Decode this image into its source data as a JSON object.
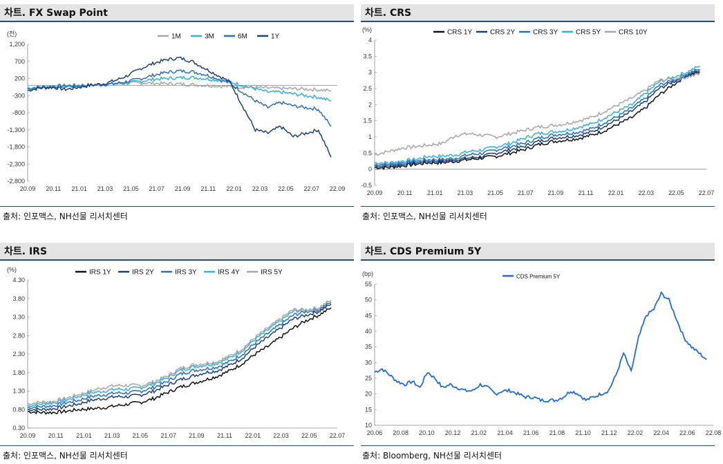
{
  "colors": {
    "gray": "#a6a6a6",
    "light": "#2fb0e3",
    "mid": "#2a6fb7",
    "dark": "#1b3f7a",
    "black": "#111111",
    "cds": "#1f6bd6"
  },
  "panels": [
    {
      "title": "차트. FX Swap Point",
      "source": "출처: 인포맥스, NH선물 리서치센터"
    },
    {
      "title": "차트. CRS",
      "source": "출처: 인포맥스, NH선물 리서치센터"
    },
    {
      "title": "차트. IRS",
      "source": "출처: 인포맥스, NH선물 리서치센터"
    },
    {
      "title": "차트. CDS Premium 5Y",
      "source": "출처: Bloomberg, NH선물 리서치센터"
    }
  ],
  "chart_data": [
    {
      "type": "line",
      "title": "차트. FX Swap Point",
      "unit": "(전)",
      "ylim": [
        -2800,
        1200
      ],
      "yticks": [
        "1,200",
        "700",
        "200",
        "-300",
        "-800",
        "-1,300",
        "-1,800",
        "-2,300",
        "-2,800"
      ],
      "xticks": [
        "20.09",
        "20.11",
        "21.01",
        "21.03",
        "21.05",
        "21.07",
        "21.09",
        "21.11",
        "22.01",
        "22.03",
        "22.05",
        "22.07",
        "22.09"
      ],
      "legend": "top",
      "series": [
        {
          "name": "1M",
          "color": "gray",
          "y": [
            -80,
            -40,
            -20,
            0,
            10,
            20,
            30,
            40,
            60,
            70,
            60,
            50,
            40,
            20,
            0,
            -20,
            -40,
            -50,
            -60,
            -80,
            -90,
            -100,
            -110,
            -130,
            -160
          ]
        },
        {
          "name": "3M",
          "color": "light",
          "y": [
            -80,
            -40,
            -20,
            -10,
            0,
            10,
            20,
            40,
            80,
            120,
            180,
            200,
            220,
            230,
            200,
            150,
            100,
            0,
            -100,
            -200,
            -200,
            -250,
            -300,
            -350,
            -450
          ]
        },
        {
          "name": "6M",
          "color": "mid",
          "y": [
            -100,
            -60,
            -40,
            -30,
            -20,
            0,
            20,
            60,
            120,
            200,
            300,
            380,
            420,
            400,
            320,
            200,
            60,
            -200,
            -450,
            -650,
            -500,
            -600,
            -650,
            -700,
            -1200
          ]
        },
        {
          "name": "1Y",
          "color": "dark",
          "y": [
            -150,
            -80,
            -60,
            -120,
            -60,
            0,
            50,
            150,
            300,
            500,
            650,
            750,
            800,
            700,
            500,
            300,
            100,
            -600,
            -1300,
            -1400,
            -1200,
            -1500,
            -1400,
            -1300,
            -2100
          ]
        }
      ]
    },
    {
      "type": "line",
      "title": "차트. CRS",
      "unit": "(%)",
      "ylim": [
        -0.5,
        4
      ],
      "yticks": [
        "4",
        "3.5",
        "3",
        "2.5",
        "2",
        "1.5",
        "1",
        "0.5",
        "0",
        "-0.5"
      ],
      "xticks": [
        "20.09",
        "20.11",
        "21.01",
        "21.03",
        "21.05",
        "21.07",
        "21.09",
        "21.11",
        "22.01",
        "22.03",
        "22.05",
        "22.07"
      ],
      "legend": "top",
      "series": [
        {
          "name": "CRS 1Y",
          "color": "black",
          "y": [
            0.05,
            0.05,
            0.1,
            0.15,
            0.2,
            0.2,
            0.25,
            0.3,
            0.35,
            0.4,
            0.5,
            0.6,
            0.75,
            0.85,
            0.9,
            0.95,
            1.05,
            1.2,
            1.4,
            1.6,
            1.9,
            2.3,
            2.6,
            2.9,
            3.0
          ]
        },
        {
          "name": "CRS 2Y",
          "color": "dark",
          "y": [
            0.1,
            0.1,
            0.15,
            0.2,
            0.25,
            0.25,
            0.3,
            0.35,
            0.4,
            0.5,
            0.6,
            0.7,
            0.85,
            0.95,
            1.0,
            1.05,
            1.15,
            1.35,
            1.55,
            1.8,
            2.1,
            2.5,
            2.7,
            2.9,
            3.05
          ]
        },
        {
          "name": "CRS 3Y",
          "color": "mid",
          "y": [
            0.15,
            0.15,
            0.2,
            0.25,
            0.3,
            0.3,
            0.35,
            0.45,
            0.5,
            0.6,
            0.7,
            0.8,
            0.95,
            1.05,
            1.1,
            1.15,
            1.25,
            1.45,
            1.65,
            1.9,
            2.2,
            2.6,
            2.75,
            2.95,
            3.1
          ]
        },
        {
          "name": "CRS 5Y",
          "color": "light",
          "y": [
            0.2,
            0.2,
            0.25,
            0.3,
            0.4,
            0.4,
            0.45,
            0.55,
            0.6,
            0.7,
            0.8,
            0.95,
            1.1,
            1.15,
            1.2,
            1.3,
            1.4,
            1.6,
            1.8,
            2.0,
            2.35,
            2.7,
            2.85,
            3.0,
            3.2
          ]
        },
        {
          "name": "CRS 10Y",
          "color": "gray",
          "y": [
            0.45,
            0.55,
            0.65,
            0.7,
            0.75,
            0.8,
            1.05,
            1.1,
            1.05,
            1.0,
            1.1,
            1.2,
            1.3,
            1.35,
            1.4,
            1.5,
            1.6,
            1.8,
            2.0,
            2.2,
            2.45,
            2.75,
            2.8,
            2.85,
            2.95
          ]
        }
      ]
    },
    {
      "type": "line",
      "title": "차트. IRS",
      "unit": "(%)",
      "ylim": [
        0.3,
        4.3
      ],
      "yticks": [
        "4.30",
        "3.80",
        "3.30",
        "2.80",
        "2.30",
        "1.80",
        "1.30",
        "0.80",
        "0.30"
      ],
      "xticks": [
        "20.09",
        "20.11",
        "21.01",
        "21.03",
        "21.05",
        "21.07",
        "21.09",
        "21.11",
        "22.01",
        "22.03",
        "22.05",
        "22.07"
      ],
      "legend": "top",
      "series": [
        {
          "name": "IRS 1Y",
          "color": "black",
          "y": [
            0.75,
            0.72,
            0.72,
            0.75,
            0.8,
            0.82,
            0.85,
            0.9,
            0.95,
            1.0,
            1.1,
            1.25,
            1.4,
            1.5,
            1.6,
            1.7,
            1.85,
            2.05,
            2.3,
            2.5,
            2.75,
            3.0,
            3.2,
            3.35,
            3.55
          ]
        },
        {
          "name": "IRS 2Y",
          "color": "dark",
          "y": [
            0.8,
            0.8,
            0.82,
            0.88,
            0.95,
            1.05,
            1.1,
            1.15,
            1.15,
            1.2,
            1.3,
            1.45,
            1.6,
            1.7,
            1.8,
            1.85,
            2.0,
            2.2,
            2.5,
            2.75,
            3.0,
            3.25,
            3.35,
            3.45,
            3.65
          ]
        },
        {
          "name": "IRS 3Y",
          "color": "mid",
          "y": [
            0.85,
            0.88,
            0.9,
            0.98,
            1.05,
            1.15,
            1.2,
            1.25,
            1.25,
            1.3,
            1.4,
            1.55,
            1.75,
            1.85,
            1.9,
            1.95,
            2.1,
            2.3,
            2.6,
            2.85,
            3.1,
            3.35,
            3.45,
            3.5,
            3.7
          ]
        },
        {
          "name": "IRS 4Y",
          "color": "light",
          "y": [
            0.9,
            0.95,
            0.98,
            1.05,
            1.15,
            1.25,
            1.3,
            1.35,
            1.35,
            1.4,
            1.5,
            1.65,
            1.85,
            1.95,
            2.0,
            2.05,
            2.2,
            2.4,
            2.7,
            2.95,
            3.2,
            3.45,
            3.5,
            3.55,
            3.75
          ]
        },
        {
          "name": "IRS 5Y",
          "color": "gray",
          "y": [
            0.95,
            1.0,
            1.02,
            1.1,
            1.2,
            1.3,
            1.4,
            1.45,
            1.45,
            1.45,
            1.55,
            1.7,
            1.9,
            2.0,
            2.05,
            2.1,
            2.25,
            2.45,
            2.75,
            3.0,
            3.25,
            3.5,
            3.5,
            3.55,
            3.75
          ]
        }
      ]
    },
    {
      "type": "line",
      "title": "차트. CDS Premium 5Y",
      "unit": "(bp)",
      "ylim": [
        10,
        55
      ],
      "yticks": [
        "55",
        "50",
        "45",
        "40",
        "35",
        "30",
        "25",
        "20",
        "15",
        "10"
      ],
      "xticks": [
        "20.06",
        "20.08",
        "20.10",
        "20.12",
        "21.02",
        "21.04",
        "21.06",
        "21.08",
        "21.10",
        "21.12",
        "22.02",
        "22.04",
        "22.06",
        "22.08"
      ],
      "legend": "top",
      "series": [
        {
          "name": "CDS Premium 5Y",
          "color": "cds",
          "y": [
            27,
            28,
            26,
            24,
            23,
            24,
            22,
            27,
            25,
            22,
            23,
            22,
            21,
            21,
            23,
            22,
            20,
            21,
            21,
            20,
            19,
            19,
            18,
            18,
            18,
            19,
            21,
            20,
            18,
            19,
            20,
            21,
            26,
            33,
            27,
            38,
            45,
            47,
            52,
            50,
            44,
            38,
            35,
            33,
            31
          ]
        }
      ]
    }
  ]
}
